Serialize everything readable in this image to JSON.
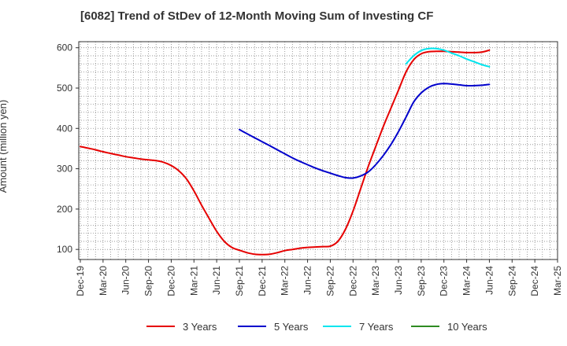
{
  "chart_data": {
    "type": "line",
    "title": "[6082]  Trend of StDev of 12-Month Moving Sum of Investing CF",
    "ylabel": "Amount (million yen)",
    "xlabel": "",
    "ylim": [
      75,
      615
    ],
    "yticks": [
      100,
      200,
      300,
      400,
      500,
      600
    ],
    "grid": true,
    "legend_position": "bottom",
    "x_tick_labels": [
      "Dec-19",
      "Mar-20",
      "Jun-20",
      "Sep-20",
      "Dec-20",
      "Mar-21",
      "Jun-21",
      "Sep-21",
      "Dec-21",
      "Mar-22",
      "Jun-22",
      "Sep-22",
      "Dec-22",
      "Mar-23",
      "Jun-23",
      "Sep-23",
      "Dec-23",
      "Mar-24",
      "Jun-24",
      "Sep-24",
      "Dec-24",
      "Mar-25"
    ],
    "series": [
      {
        "name": "3 Years",
        "color": "#e60000",
        "points": [
          [
            "Dec-19",
            355
          ],
          [
            "Jan-20",
            351
          ],
          [
            "Feb-20",
            347
          ],
          [
            "Mar-20",
            342
          ],
          [
            "Apr-20",
            338
          ],
          [
            "May-20",
            334
          ],
          [
            "Jun-20",
            330
          ],
          [
            "Jul-20",
            327
          ],
          [
            "Aug-20",
            324
          ],
          [
            "Sep-20",
            322
          ],
          [
            "Oct-20",
            320
          ],
          [
            "Nov-20",
            316
          ],
          [
            "Dec-20",
            308
          ],
          [
            "Jan-21",
            295
          ],
          [
            "Feb-21",
            275
          ],
          [
            "Mar-21",
            245
          ],
          [
            "Apr-21",
            210
          ],
          [
            "May-21",
            177
          ],
          [
            "Jun-21",
            145
          ],
          [
            "Jul-21",
            120
          ],
          [
            "Aug-21",
            105
          ],
          [
            "Sep-21",
            98
          ],
          [
            "Oct-21",
            92
          ],
          [
            "Nov-21",
            88
          ],
          [
            "Dec-21",
            87
          ],
          [
            "Jan-22",
            88
          ],
          [
            "Feb-22",
            92
          ],
          [
            "Mar-22",
            97
          ],
          [
            "Apr-22",
            100
          ],
          [
            "May-22",
            103
          ],
          [
            "Jun-22",
            105
          ],
          [
            "Jul-22",
            106
          ],
          [
            "Aug-22",
            107
          ],
          [
            "Sep-22",
            108
          ],
          [
            "Oct-22",
            120
          ],
          [
            "Nov-22",
            150
          ],
          [
            "Dec-22",
            195
          ],
          [
            "Jan-23",
            250
          ],
          [
            "Feb-23",
            305
          ],
          [
            "Mar-23",
            355
          ],
          [
            "Apr-23",
            405
          ],
          [
            "May-23",
            450
          ],
          [
            "Jun-23",
            495
          ],
          [
            "Jul-23",
            540
          ],
          [
            "Aug-23",
            570
          ],
          [
            "Sep-23",
            585
          ],
          [
            "Oct-23",
            590
          ],
          [
            "Nov-23",
            591
          ],
          [
            "Dec-23",
            591
          ],
          [
            "Jan-24",
            590
          ],
          [
            "Feb-24",
            589
          ],
          [
            "Mar-24",
            588
          ],
          [
            "Apr-24",
            588
          ],
          [
            "May-24",
            589
          ],
          [
            "Jun-24",
            594
          ]
        ]
      },
      {
        "name": "5 Years",
        "color": "#0000cc",
        "points": [
          [
            "Sep-21",
            397
          ],
          [
            "Oct-21",
            387
          ],
          [
            "Nov-21",
            377
          ],
          [
            "Dec-21",
            367
          ],
          [
            "Jan-22",
            357
          ],
          [
            "Feb-22",
            347
          ],
          [
            "Mar-22",
            337
          ],
          [
            "Apr-22",
            327
          ],
          [
            "May-22",
            318
          ],
          [
            "Jun-22",
            310
          ],
          [
            "Jul-22",
            302
          ],
          [
            "Aug-22",
            295
          ],
          [
            "Sep-22",
            289
          ],
          [
            "Oct-22",
            283
          ],
          [
            "Nov-22",
            278
          ],
          [
            "Dec-22",
            277
          ],
          [
            "Jan-23",
            282
          ],
          [
            "Feb-23",
            292
          ],
          [
            "Mar-23",
            310
          ],
          [
            "Apr-23",
            333
          ],
          [
            "May-23",
            360
          ],
          [
            "Jun-23",
            392
          ],
          [
            "Jul-23",
            428
          ],
          [
            "Aug-23",
            465
          ],
          [
            "Sep-23",
            488
          ],
          [
            "Oct-23",
            502
          ],
          [
            "Nov-23",
            509
          ],
          [
            "Dec-23",
            511
          ],
          [
            "Jan-24",
            510
          ],
          [
            "Feb-24",
            508
          ],
          [
            "Mar-24",
            506
          ],
          [
            "Apr-24",
            506
          ],
          [
            "May-24",
            507
          ],
          [
            "Jun-24",
            509
          ]
        ]
      },
      {
        "name": "7 Years",
        "color": "#00e5ee",
        "points": [
          [
            "Jul-23",
            560
          ],
          [
            "Aug-23",
            580
          ],
          [
            "Sep-23",
            593
          ],
          [
            "Oct-23",
            598
          ],
          [
            "Nov-23",
            598
          ],
          [
            "Dec-23",
            594
          ],
          [
            "Jan-24",
            587
          ],
          [
            "Feb-24",
            580
          ],
          [
            "Mar-24",
            572
          ],
          [
            "Apr-24",
            565
          ],
          [
            "May-24",
            558
          ],
          [
            "Jun-24",
            553
          ]
        ]
      },
      {
        "name": "10 Years",
        "color": "#2e8b22",
        "points": []
      }
    ]
  }
}
